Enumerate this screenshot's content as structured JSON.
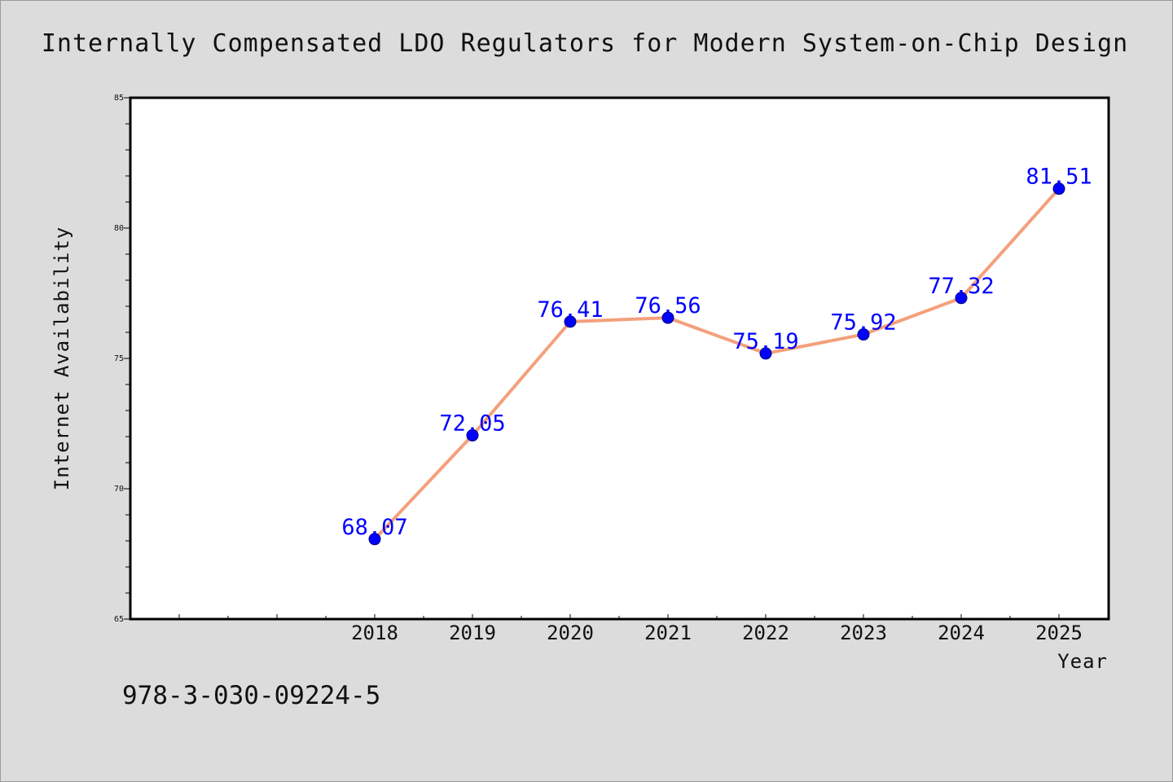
{
  "chart_data": {
    "type": "line",
    "title": "Internally Compensated LDO Regulators for Modern System-on-Chip Design",
    "xlabel": "Year",
    "ylabel": "Internet Availability",
    "x": [
      "2018",
      "2019",
      "2020",
      "2021",
      "2022",
      "2023",
      "2024",
      "2025"
    ],
    "series": [
      {
        "values": [
          68.07,
          72.05,
          76.41,
          76.56,
          75.19,
          75.92,
          77.32,
          81.51
        ],
        "data_labels": [
          "68.07",
          "72.05",
          "76.41",
          "76.56",
          "75.19",
          "75.92",
          "77.32",
          "81.51"
        ]
      }
    ],
    "ylim": [
      65,
      85
    ],
    "yticks": [
      "65",
      "70",
      "75",
      "80",
      "85"
    ],
    "grid": false,
    "colors": {
      "line": "#f4a07c",
      "marker": "#0000ff",
      "label": "#0000ff",
      "background": "#dcdcdc",
      "plot_background": "#ffffff"
    }
  },
  "footer": {
    "isbn": "978-3-030-09224-5"
  }
}
